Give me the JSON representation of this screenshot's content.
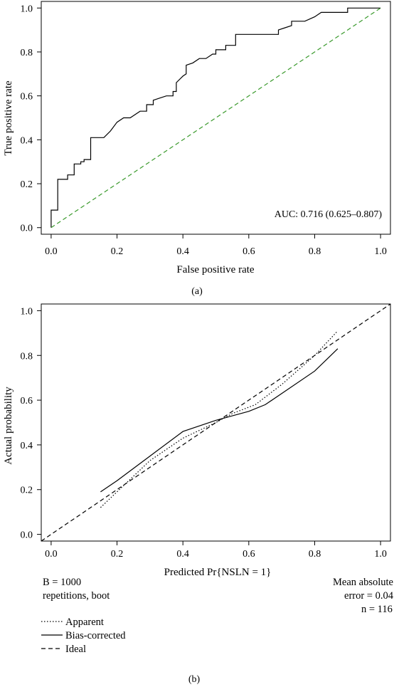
{
  "chart_data": [
    {
      "panel_label": "(a)",
      "type": "line",
      "xlabel": "False positive rate",
      "ylabel": "True positive rate",
      "xlim": [
        -0.03,
        1.03
      ],
      "ylim": [
        -0.03,
        1.03
      ],
      "xticks": [
        "0.0",
        "0.2",
        "0.4",
        "0.6",
        "0.8",
        "1.0"
      ],
      "yticks": [
        "0.0",
        "0.2",
        "0.4",
        "0.6",
        "0.8",
        "1.0"
      ],
      "grid": false,
      "annotation": "AUC: 0.716 (0.625–0.807)",
      "series": [
        {
          "style": "solid",
          "color": "#000000",
          "points": [
            [
              0.0,
              0.0
            ],
            [
              0.0,
              0.08
            ],
            [
              0.02,
              0.08
            ],
            [
              0.02,
              0.22
            ],
            [
              0.05,
              0.22
            ],
            [
              0.05,
              0.24
            ],
            [
              0.07,
              0.24
            ],
            [
              0.07,
              0.29
            ],
            [
              0.09,
              0.29
            ],
            [
              0.09,
              0.3
            ],
            [
              0.1,
              0.3
            ],
            [
              0.1,
              0.31
            ],
            [
              0.12,
              0.31
            ],
            [
              0.12,
              0.41
            ],
            [
              0.16,
              0.41
            ],
            [
              0.18,
              0.44
            ],
            [
              0.2,
              0.48
            ],
            [
              0.22,
              0.5
            ],
            [
              0.24,
              0.5
            ],
            [
              0.27,
              0.53
            ],
            [
              0.29,
              0.53
            ],
            [
              0.29,
              0.56
            ],
            [
              0.31,
              0.56
            ],
            [
              0.31,
              0.58
            ],
            [
              0.33,
              0.59
            ],
            [
              0.35,
              0.6
            ],
            [
              0.37,
              0.6
            ],
            [
              0.37,
              0.62
            ],
            [
              0.38,
              0.62
            ],
            [
              0.38,
              0.66
            ],
            [
              0.4,
              0.69
            ],
            [
              0.41,
              0.7
            ],
            [
              0.41,
              0.74
            ],
            [
              0.43,
              0.75
            ],
            [
              0.45,
              0.77
            ],
            [
              0.47,
              0.77
            ],
            [
              0.49,
              0.79
            ],
            [
              0.5,
              0.79
            ],
            [
              0.5,
              0.81
            ],
            [
              0.53,
              0.81
            ],
            [
              0.53,
              0.83
            ],
            [
              0.56,
              0.83
            ],
            [
              0.56,
              0.88
            ],
            [
              0.69,
              0.88
            ],
            [
              0.69,
              0.9
            ],
            [
              0.71,
              0.91
            ],
            [
              0.73,
              0.92
            ],
            [
              0.73,
              0.94
            ],
            [
              0.77,
              0.94
            ],
            [
              0.8,
              0.96
            ],
            [
              0.82,
              0.98
            ],
            [
              0.9,
              0.98
            ],
            [
              0.9,
              1.0
            ],
            [
              1.0,
              1.0
            ]
          ]
        },
        {
          "style": "dashed",
          "color": "#3a9a2c",
          "points": [
            [
              0.0,
              0.0
            ],
            [
              1.0,
              1.0
            ]
          ]
        }
      ]
    },
    {
      "panel_label": "(b)",
      "type": "line",
      "xlabel": "Predicted Pr{NSLN = 1}",
      "ylabel": "Actual probability",
      "xlim": [
        -0.03,
        1.03
      ],
      "ylim": [
        -0.03,
        1.03
      ],
      "xticks": [
        "0.0",
        "0.2",
        "0.4",
        "0.6",
        "0.8",
        "1.0"
      ],
      "yticks": [
        "0.0",
        "0.2",
        "0.4",
        "0.6",
        "0.8",
        "1.0"
      ],
      "grid": false,
      "notes_left": [
        "B = 1000",
        "repetitions, boot"
      ],
      "notes_right": [
        "Mean absolute",
        "error = 0.04",
        "n = 116"
      ],
      "series": [
        {
          "name": "Apparent",
          "style": "dotted",
          "color": "#000000",
          "points": [
            [
              0.15,
              0.12
            ],
            [
              0.2,
              0.19
            ],
            [
              0.3,
              0.33
            ],
            [
              0.4,
              0.43
            ],
            [
              0.5,
              0.5
            ],
            [
              0.55,
              0.54
            ],
            [
              0.62,
              0.58
            ],
            [
              0.7,
              0.67
            ],
            [
              0.8,
              0.8
            ],
            [
              0.87,
              0.91
            ]
          ]
        },
        {
          "name": "Bias-corrected",
          "style": "solid",
          "color": "#000000",
          "points": [
            [
              0.15,
              0.19
            ],
            [
              0.2,
              0.24
            ],
            [
              0.3,
              0.35
            ],
            [
              0.4,
              0.46
            ],
            [
              0.5,
              0.51
            ],
            [
              0.55,
              0.53
            ],
            [
              0.6,
              0.55
            ],
            [
              0.65,
              0.58
            ],
            [
              0.7,
              0.63
            ],
            [
              0.8,
              0.73
            ],
            [
              0.87,
              0.83
            ]
          ]
        },
        {
          "name": "Ideal",
          "style": "dashed",
          "color": "#000000",
          "points": [
            [
              -0.03,
              -0.03
            ],
            [
              1.03,
              1.03
            ]
          ]
        }
      ]
    }
  ]
}
